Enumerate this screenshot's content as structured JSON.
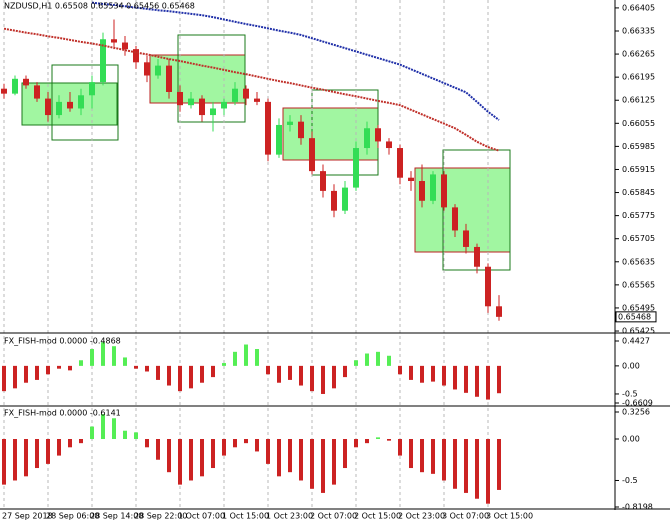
{
  "chart_data": [
    {
      "type": "candlestick",
      "title": "NZDUSD,H1 0.65508 0.65534 0.65456 0.65468",
      "categories": [
        "27 Sep 2018",
        null,
        null,
        null,
        "28 Sep 06:00",
        null,
        null,
        null,
        "28 Sep 14:00",
        null,
        null,
        null,
        "28 Sep 22:00",
        null,
        null,
        null,
        "1 Oct 07:00",
        null,
        null,
        null,
        "1 Oct 15:00",
        null,
        null,
        null,
        "1 Oct 23:00",
        null,
        null,
        null,
        "2 Oct 07:00",
        null,
        null,
        null,
        "2 Oct 15:00",
        null,
        null,
        null,
        "2 Oct 23:00",
        null,
        null,
        null,
        "3 Oct 07:00",
        null,
        null,
        null,
        "3 Oct 15:00",
        null
      ],
      "open": [
        0.6616,
        0.66145,
        0.6619,
        0.6617,
        0.6613,
        0.6608,
        0.6612,
        0.661,
        0.6614,
        0.6618,
        0.6631,
        0.663,
        0.6628,
        0.6624,
        0.662,
        0.6623,
        0.6615,
        0.6611,
        0.6613,
        0.6608,
        0.661,
        0.6612,
        0.6616,
        0.6613,
        0.6612,
        0.6596,
        0.6605,
        0.6606,
        0.6601,
        0.6591,
        0.6585,
        0.6579,
        0.6586,
        0.6598,
        0.6604,
        0.66,
        0.6598,
        0.6589,
        0.6588,
        0.6582,
        0.659,
        0.658,
        0.6573,
        0.6568,
        0.6562,
        0.655
      ],
      "high": [
        0.66175,
        0.662,
        0.662,
        0.6618,
        0.6615,
        0.6614,
        0.6615,
        0.6616,
        0.662,
        0.6633,
        0.6637,
        0.6632,
        0.6629,
        0.6626,
        0.6625,
        0.6625,
        0.6617,
        0.6615,
        0.6614,
        0.6612,
        0.6613,
        0.6618,
        0.6617,
        0.6615,
        0.6613,
        0.6607,
        0.6608,
        0.6608,
        0.6603,
        0.6593,
        0.6587,
        0.6588,
        0.66,
        0.6606,
        0.6605,
        0.6601,
        0.6599,
        0.6591,
        0.6593,
        0.6591,
        0.6591,
        0.6581,
        0.6575,
        0.6569,
        0.6563,
        0.65534
      ],
      "low": [
        0.6613,
        0.6614,
        0.6616,
        0.6612,
        0.6606,
        0.6607,
        0.6609,
        0.6608,
        0.661,
        0.6617,
        0.6628,
        0.6626,
        0.6622,
        0.6618,
        0.6619,
        0.6613,
        0.6609,
        0.661,
        0.6606,
        0.6603,
        0.6608,
        0.6611,
        0.6611,
        0.6611,
        0.6594,
        0.6595,
        0.6603,
        0.6599,
        0.659,
        0.6583,
        0.6577,
        0.6578,
        0.6585,
        0.6596,
        0.6598,
        0.6596,
        0.6587,
        0.6585,
        0.658,
        0.6581,
        0.6579,
        0.6571,
        0.6566,
        0.656,
        0.6548,
        0.65456
      ],
      "close": [
        0.66145,
        0.6619,
        0.6617,
        0.6613,
        0.6608,
        0.6612,
        0.661,
        0.6614,
        0.6618,
        0.6631,
        0.663,
        0.6628,
        0.6624,
        0.662,
        0.6623,
        0.6615,
        0.6611,
        0.6613,
        0.6608,
        0.661,
        0.6612,
        0.6616,
        0.6613,
        0.6612,
        0.6596,
        0.6605,
        0.6606,
        0.6601,
        0.6591,
        0.6585,
        0.6579,
        0.6586,
        0.6598,
        0.6604,
        0.66,
        0.6598,
        0.6589,
        0.6588,
        0.6582,
        0.659,
        0.658,
        0.6573,
        0.6568,
        0.6562,
        0.655,
        0.65468
      ],
      "up_color": "#33dd55",
      "down_color": "#cc2222",
      "lines": [
        {
          "color": "#1f2fa8",
          "values": [
            null,
            null,
            null,
            null,
            null,
            null,
            null,
            null,
            0.66421,
            0.66417,
            0.66414,
            0.6641,
            0.66406,
            0.66402,
            0.66398,
            0.66395,
            0.66391,
            0.66387,
            0.66383,
            0.66377,
            0.6637,
            0.66363,
            0.66356,
            0.6635,
            0.66343,
            0.66336,
            0.6633,
            0.66323,
            0.66313,
            0.66303,
            0.66293,
            0.66283,
            0.66273,
            0.66263,
            0.66253,
            0.66243,
            0.66233,
            0.66219,
            0.66205,
            0.66191,
            0.66177,
            0.66163,
            0.66149,
            0.6612,
            0.6609,
            0.66065
          ]
        },
        {
          "color": "#c0302a",
          "values": [
            0.66342,
            0.66336,
            0.6633,
            0.66325,
            0.66319,
            0.66314,
            0.66308,
            0.66302,
            0.66297,
            0.66291,
            0.66284,
            0.66277,
            0.6627,
            0.66264,
            0.66257,
            0.6625,
            0.66244,
            0.66237,
            0.6623,
            0.66224,
            0.66217,
            0.6621,
            0.66204,
            0.66197,
            0.6619,
            0.66183,
            0.66177,
            0.6617,
            0.66163,
            0.66157,
            0.6615,
            0.66143,
            0.66137,
            0.6613,
            0.66123,
            0.66117,
            0.6611,
            0.66096,
            0.66082,
            0.66068,
            0.66054,
            0.6604,
            0.6602,
            0.65999,
            0.65983,
            0.65972
          ]
        }
      ],
      "last_price": 0.65468,
      "ylim": [
        0.65419,
        0.66429
      ],
      "yticks": [
        0.66405,
        0.66335,
        0.66265,
        0.66195,
        0.66125,
        0.66055,
        0.65985,
        0.65915,
        0.65845,
        0.65775,
        0.65705,
        0.65635,
        0.65565,
        0.65495,
        0.65425
      ]
    },
    {
      "type": "bar",
      "title": "FX_FISH-mod 0.0000 -0.4868",
      "pos_color": "#55ee55",
      "neg_color": "#cc2222",
      "values": [
        -0.45,
        -0.4,
        -0.3,
        -0.25,
        -0.15,
        -0.05,
        -0.08,
        0.1,
        0.3,
        0.42,
        0.35,
        0.15,
        -0.05,
        -0.1,
        -0.25,
        -0.35,
        -0.45,
        -0.4,
        -0.3,
        -0.2,
        0.05,
        0.25,
        0.38,
        0.3,
        -0.15,
        -0.3,
        -0.25,
        -0.35,
        -0.45,
        -0.5,
        -0.4,
        -0.2,
        0.1,
        0.22,
        0.25,
        0.18,
        -0.15,
        -0.25,
        -0.3,
        -0.28,
        -0.35,
        -0.42,
        -0.48,
        -0.55,
        -0.6,
        -0.4868
      ],
      "ylim": [
        -0.6609,
        0.4427
      ],
      "yticks": [
        0.4427,
        {
          "value": 0,
          "label": "0.00"
        },
        -0.5,
        -0.6609
      ]
    },
    {
      "type": "bar",
      "title": "FX_FISH-mod 0.0000 -0.6141",
      "pos_color": "#55ee55",
      "neg_color": "#cc2222",
      "values": [
        -0.55,
        -0.5,
        -0.45,
        -0.35,
        -0.3,
        -0.2,
        -0.1,
        -0.05,
        0.15,
        0.3,
        0.25,
        0.1,
        0.08,
        -0.1,
        -0.25,
        -0.4,
        -0.55,
        -0.5,
        -0.45,
        -0.35,
        -0.2,
        -0.1,
        -0.05,
        -0.15,
        -0.3,
        -0.45,
        -0.4,
        -0.5,
        -0.6,
        -0.65,
        -0.55,
        -0.35,
        -0.1,
        -0.05,
        0.02,
        -0.02,
        -0.2,
        -0.35,
        -0.4,
        -0.42,
        -0.5,
        -0.6,
        -0.65,
        -0.72,
        -0.78,
        -0.6141
      ],
      "ylim": [
        -0.8198,
        0.3256
      ],
      "yticks": [
        0.3256,
        {
          "value": 0,
          "label": "0.00"
        },
        -0.5,
        -0.8198
      ]
    }
  ]
}
